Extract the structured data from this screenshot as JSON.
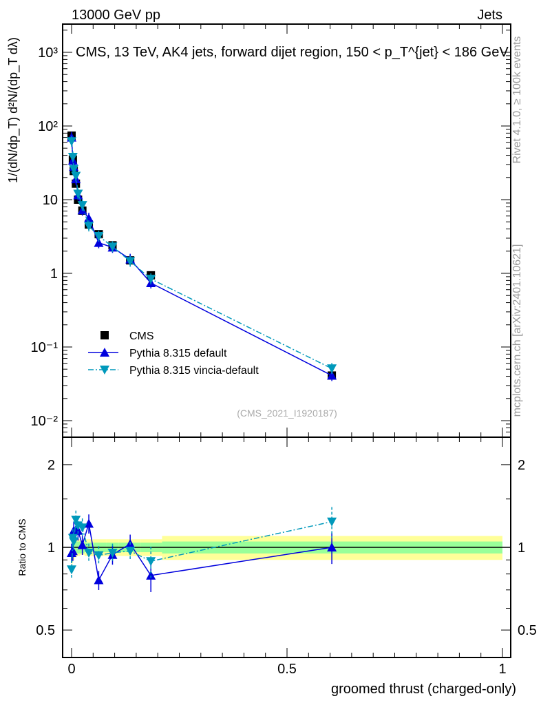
{
  "header": {
    "left": "13000 GeV pp",
    "right": "Jets"
  },
  "side_labels": {
    "rivet": "Rivet 4.1.0, ≥ 100k events",
    "mcplots": "mcplots.cern.ch [arXiv:2401.10621]"
  },
  "chart_data": [
    {
      "type": "scatter",
      "panel": "main",
      "title": "CMS, 13 TeV, AK4 jets, forward dijet region, 150 < p_T^{jet} < 186 GeV",
      "ylabel": "1/(dN/dp_T) d²N/(dp_T dλ)",
      "yscale": "log",
      "ylim": [
        0.006,
        2400
      ],
      "yticks": [
        {
          "v": 0.01,
          "label": "10⁻²"
        },
        {
          "v": 0.1,
          "label": "10⁻¹"
        },
        {
          "v": 1,
          "label": "1"
        },
        {
          "v": 10,
          "label": "10"
        },
        {
          "v": 100,
          "label": "10²"
        },
        {
          "v": 1000,
          "label": "10³"
        }
      ],
      "xlim": [
        -0.02,
        1.02
      ],
      "watermark": "(CMS_2021_I1920187)",
      "x": [
        0.0,
        0.003,
        0.005,
        0.01,
        0.015,
        0.025,
        0.04,
        0.063,
        0.095,
        0.136,
        0.184,
        0.604
      ],
      "series": [
        {
          "name": "CMS",
          "color": "#000000",
          "marker": "square",
          "values": [
            74,
            35,
            24.5,
            16.5,
            10,
            7.1,
            4.6,
            3.4,
            2.4,
            1.5,
            0.94,
            0.041
          ]
        },
        {
          "name": "Pythia 8.315 default",
          "color": "#0000dd",
          "marker": "triangle-up",
          "line": "solid",
          "values": [
            70,
            34,
            28,
            19,
            11.5,
            7.2,
            5.6,
            2.6,
            2.25,
            1.55,
            0.74,
            0.041
          ]
        },
        {
          "name": "Pythia 8.315 vincia-default",
          "color": "#0099bb",
          "marker": "triangle-down",
          "line": "dashdot",
          "values": [
            62,
            38,
            26,
            21,
            12,
            8.4,
            4.4,
            3.2,
            2.3,
            1.46,
            0.84,
            0.051
          ]
        }
      ],
      "legend": "center-left"
    },
    {
      "type": "scatter",
      "panel": "ratio",
      "ylabel": "Ratio to CMS",
      "xlabel": "groomed thrust (charged-only)",
      "yscale": "log",
      "ylim": [
        0.4,
        2.5
      ],
      "yticks": [
        {
          "v": 0.5,
          "label": "0.5"
        },
        {
          "v": 1,
          "label": "1"
        },
        {
          "v": 2,
          "label": "2"
        }
      ],
      "xticks": [
        {
          "v": 0,
          "label": "0"
        },
        {
          "v": 0.5,
          "label": "0.5"
        },
        {
          "v": 1,
          "label": "1"
        }
      ],
      "x": [
        0.0,
        0.003,
        0.005,
        0.01,
        0.015,
        0.025,
        0.04,
        0.063,
        0.095,
        0.136,
        0.184,
        0.604
      ],
      "series": [
        {
          "name": "Pythia 8.315 default",
          "color": "#0000dd",
          "values": [
            0.955,
            0.97,
            1.15,
            1.16,
            1.15,
            1.02,
            1.22,
            0.76,
            0.94,
            1.03,
            0.79,
            1.0
          ]
        },
        {
          "name": "Pythia 8.315 vincia-default",
          "color": "#0099bb",
          "values": [
            0.83,
            1.08,
            1.05,
            1.26,
            1.2,
            1.18,
            0.955,
            0.935,
            0.955,
            0.97,
            0.89,
            1.24
          ]
        }
      ],
      "band_edges": [
        0,
        0.002,
        0.004,
        0.007,
        0.012,
        0.02,
        0.03,
        0.05,
        0.08,
        0.11,
        0.16,
        0.21,
        1.0
      ],
      "band_inner": [
        0.1,
        0.08,
        0.06,
        0.05,
        0.05,
        0.05,
        0.04,
        0.04,
        0.04,
        0.04,
        0.04,
        0.05
      ],
      "band_outer": [
        0.14,
        0.12,
        0.1,
        0.08,
        0.07,
        0.06,
        0.07,
        0.07,
        0.07,
        0.07,
        0.07,
        0.1
      ],
      "band_colors": {
        "inner": "#99ff99",
        "outer": "#ffff99"
      }
    }
  ]
}
